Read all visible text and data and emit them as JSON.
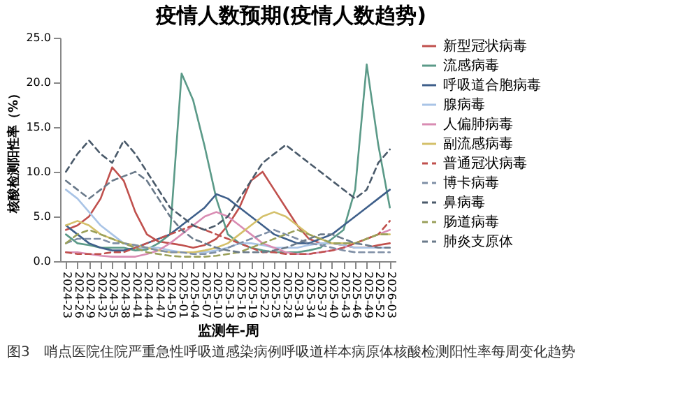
{
  "chart_data": {
    "type": "line",
    "title": "疫情人数预期(疫情人数趋势)",
    "xlabel": "监测年-周",
    "ylabel": "核酸检测阳性率（%）",
    "annotations": [
      "图3　哨点医院住院严重急性呼吸道感染病例呼吸道样本病原体核酸检测阳性率每周变化趋势"
    ],
    "categories": [
      "2024-23",
      "2024-26",
      "2024-29",
      "2024-32",
      "2024-35",
      "2024-38",
      "2024-41",
      "2024-44",
      "2024-47",
      "2024-50",
      "2025-01",
      "2025-04",
      "2025-07",
      "2025-10",
      "2025-13",
      "2025-16",
      "2025-19",
      "2025-22",
      "2025-25",
      "2025-28",
      "2025-31",
      "2025-34",
      "2025-37",
      "2025-40",
      "2025-43",
      "2025-46",
      "2025-49",
      "2025-52",
      "2026-03"
    ],
    "ylim": [
      0,
      25
    ],
    "yticks": [
      {
        "value": 0,
        "label": "0.0"
      },
      {
        "value": 5,
        "label": "5.0"
      },
      {
        "value": 10,
        "label": "10.0"
      },
      {
        "value": 15,
        "label": "15.0"
      },
      {
        "value": 20,
        "label": "20.0"
      },
      {
        "value": 25,
        "label": "25.0"
      }
    ],
    "grid": false,
    "legend": "right",
    "marker": "none",
    "series": [
      {
        "name": "新型冠状病毒",
        "color": "#c0504d",
        "line_style": "solid",
        "values": [
          3.5,
          4,
          5,
          7,
          10.5,
          9,
          5.5,
          3,
          2.2,
          2,
          1.8,
          1.5,
          1.8,
          2.5,
          4,
          6,
          9,
          10,
          8,
          6,
          4,
          2.5,
          2,
          2,
          1.8,
          1.5,
          1.5,
          1.8,
          2
        ]
      },
      {
        "name": "流感病毒",
        "color": "#5b9a88",
        "line_style": "solid",
        "values": [
          3,
          2,
          1.8,
          1.5,
          1.5,
          1.5,
          1.2,
          1.3,
          2,
          3,
          21,
          18,
          12.8,
          7,
          3,
          2,
          1.5,
          1.2,
          1,
          1,
          1,
          1.2,
          1.5,
          2.5,
          3.5,
          8,
          22,
          13,
          6
        ]
      },
      {
        "name": "呼吸道合胞病毒",
        "color": "#3e5f8a",
        "line_style": "solid",
        "values": [
          4,
          3,
          2,
          1.5,
          1.2,
          1.2,
          1.5,
          2,
          2.5,
          3,
          4,
          5,
          6,
          7.5,
          7,
          6,
          5,
          4,
          3,
          2.5,
          2,
          2,
          2.5,
          3,
          4,
          5,
          6,
          7,
          8
        ]
      },
      {
        "name": "腺病毒",
        "color": "#a9c4e6",
        "line_style": "solid",
        "values": [
          8,
          7,
          5.5,
          4,
          3,
          2,
          1.5,
          1.5,
          1.5,
          1.2,
          1,
          1,
          1,
          1.2,
          1.5,
          2,
          2,
          1.8,
          1.5,
          1.5,
          1.5,
          1.8,
          2,
          2,
          1.8,
          1.5,
          1.5,
          1.5,
          1.5
        ]
      },
      {
        "name": "人偏肺病毒",
        "color": "#d98cb3",
        "line_style": "solid",
        "values": [
          1,
          1,
          0.8,
          0.6,
          0.5,
          0.5,
          0.5,
          0.8,
          1.2,
          2,
          3,
          4,
          5,
          5.5,
          5,
          4,
          3,
          2,
          1.5,
          1,
          0.8,
          0.8,
          1,
          1.2,
          1.5,
          2,
          2.5,
          3,
          3.5
        ]
      },
      {
        "name": "副流感病毒",
        "color": "#d4c06a",
        "line_style": "solid",
        "values": [
          4,
          4.5,
          4,
          3,
          2.5,
          2,
          1.8,
          1.5,
          1.2,
          1,
          1,
          1,
          1.2,
          1.5,
          2,
          3,
          4,
          5,
          5.5,
          5,
          4,
          3,
          2.5,
          2,
          2,
          2,
          2.5,
          3,
          3
        ]
      },
      {
        "name": "普通冠状病毒",
        "color": "#c0504d",
        "line_style": "dashed",
        "values": [
          1,
          0.8,
          0.8,
          0.8,
          1,
          1,
          1.5,
          2,
          2.5,
          3,
          3.5,
          4,
          3.5,
          3,
          2.5,
          2,
          1.5,
          1,
          1,
          0.8,
          0.8,
          0.8,
          1,
          1.2,
          1.5,
          2,
          2.5,
          3,
          4.5
        ]
      },
      {
        "name": "博卡病毒",
        "color": "#7f8fa6",
        "line_style": "dashed",
        "values": [
          2,
          2.5,
          2.5,
          2.5,
          2,
          2,
          1.8,
          1.5,
          1.2,
          1,
          1,
          0.8,
          0.8,
          1,
          1.5,
          2,
          2.5,
          3,
          3.5,
          3,
          2.5,
          2,
          1.8,
          1.5,
          1.2,
          1,
          1,
          1,
          1
        ]
      },
      {
        "name": "鼻病毒",
        "color": "#4a5a6a",
        "line_style": "dashed",
        "values": [
          10,
          12,
          13.5,
          12,
          11,
          13.5,
          12,
          10,
          8,
          6,
          5,
          4,
          3.5,
          4,
          5,
          7,
          9,
          11,
          12,
          13,
          12,
          11,
          10,
          9,
          8,
          7,
          8,
          11,
          12.5
        ]
      },
      {
        "name": "肠道病毒",
        "color": "#9aa05a",
        "line_style": "dashed",
        "values": [
          2,
          3,
          3.5,
          3,
          2.5,
          2,
          1.5,
          1,
          0.8,
          0.6,
          0.5,
          0.5,
          0.5,
          0.6,
          0.8,
          1,
          1.5,
          2,
          2.5,
          3,
          3.5,
          3,
          2.5,
          2,
          2,
          2,
          2.5,
          3,
          3
        ]
      },
      {
        "name": "肺炎支原体",
        "color": "#6a7a8a",
        "line_style": "dashed",
        "values": [
          9,
          8,
          7,
          8,
          9,
          9.5,
          10,
          9,
          7,
          5,
          3.5,
          2.5,
          2,
          1.5,
          1.2,
          1,
          1,
          1,
          1.2,
          1.5,
          2,
          2.5,
          3,
          3,
          2.5,
          2,
          1.8,
          1.5,
          1.5
        ]
      }
    ]
  }
}
